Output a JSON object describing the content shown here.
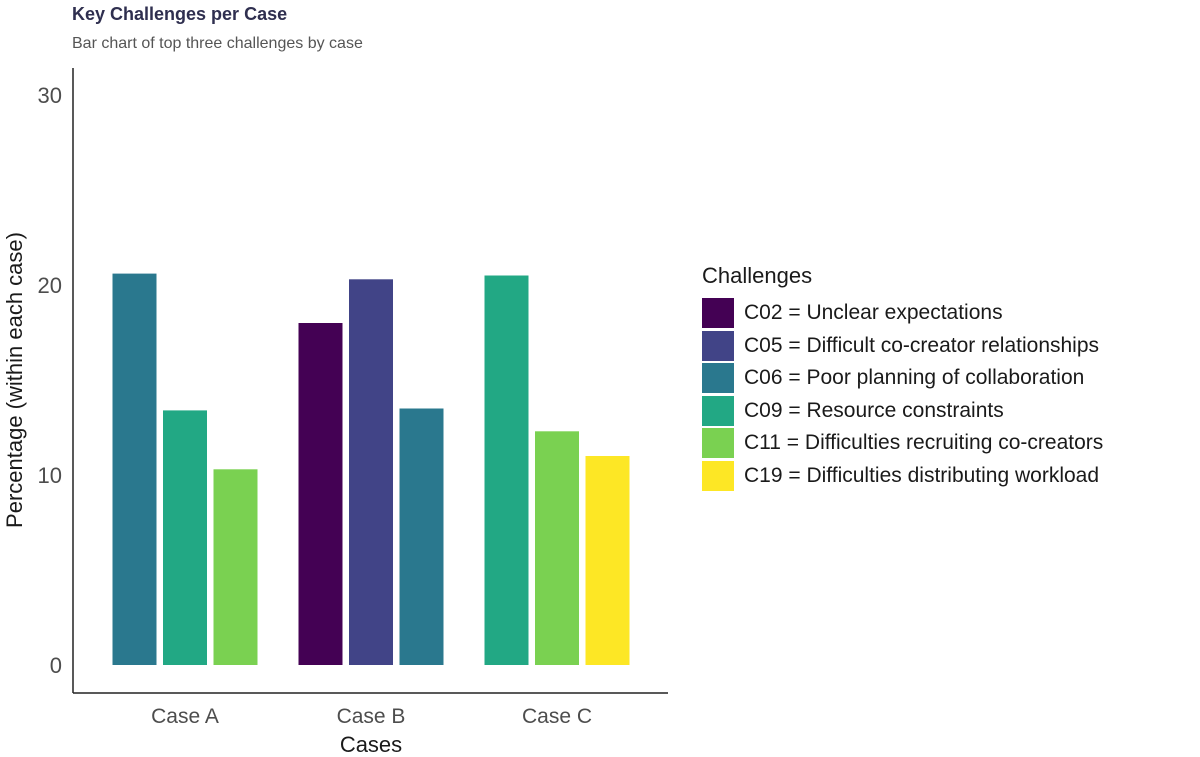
{
  "title": "Key Challenges per Case",
  "subtitle": "Bar chart of top three challenges by case",
  "chart_data": {
    "type": "bar",
    "xlabel": "Cases",
    "ylabel": "Percentage (within each case)",
    "ylim": [
      0,
      30
    ],
    "yticks": [
      0,
      10,
      20,
      30
    ],
    "grid": false,
    "legend_position": "right",
    "legend_title": "Challenges",
    "legend": [
      {
        "label": "C02 = Unclear expectations",
        "color": "#440154"
      },
      {
        "label": "C05 = Difficult co-creator relationships",
        "color": "#414487"
      },
      {
        "label": "C06 = Poor planning of collaboration",
        "color": "#2a788e"
      },
      {
        "label": "C09 = Resource constraints",
        "color": "#22a884"
      },
      {
        "label": "C11 = Difficulties recruiting co-creators",
        "color": "#7ad151"
      },
      {
        "label": "C19 = Difficulties distributing workload",
        "color": "#fde725"
      }
    ],
    "groups": [
      {
        "category": "Case A",
        "bars": [
          {
            "challenge": "C06",
            "value": 20.6,
            "color": "#2a788e"
          },
          {
            "challenge": "C09",
            "value": 13.4,
            "color": "#22a884"
          },
          {
            "challenge": "C11",
            "value": 10.3,
            "color": "#7ad151"
          }
        ]
      },
      {
        "category": "Case B",
        "bars": [
          {
            "challenge": "C02",
            "value": 18.0,
            "color": "#440154"
          },
          {
            "challenge": "C05",
            "value": 20.3,
            "color": "#414487"
          },
          {
            "challenge": "C06",
            "value": 13.5,
            "color": "#2a788e"
          }
        ]
      },
      {
        "category": "Case C",
        "bars": [
          {
            "challenge": "C09",
            "value": 20.5,
            "color": "#22a884"
          },
          {
            "challenge": "C11",
            "value": 12.3,
            "color": "#7ad151"
          },
          {
            "challenge": "C19",
            "value": 11.0,
            "color": "#fde725"
          }
        ]
      }
    ]
  }
}
